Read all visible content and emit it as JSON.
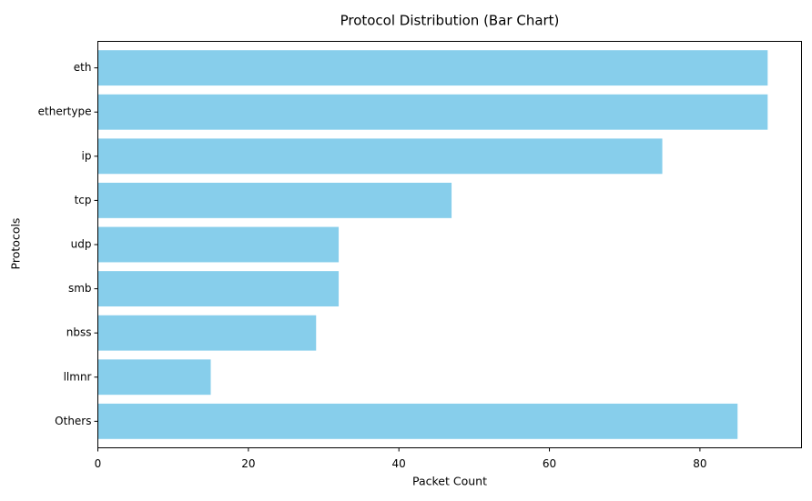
{
  "chart_data": {
    "type": "bar",
    "orientation": "horizontal",
    "title": "Protocol Distribution (Bar Chart)",
    "xlabel": "Packet Count",
    "ylabel": "Protocols",
    "categories": [
      "eth",
      "ethertype",
      "ip",
      "tcp",
      "udp",
      "smb",
      "nbss",
      "llmnr",
      "Others"
    ],
    "values": [
      89,
      89,
      75,
      47,
      32,
      32,
      29,
      15,
      85
    ],
    "xlim": [
      0,
      93.5
    ],
    "xticks": [
      0,
      20,
      40,
      60,
      80
    ],
    "bar_color": "#87ceeb",
    "grid": false,
    "legend": "none"
  }
}
